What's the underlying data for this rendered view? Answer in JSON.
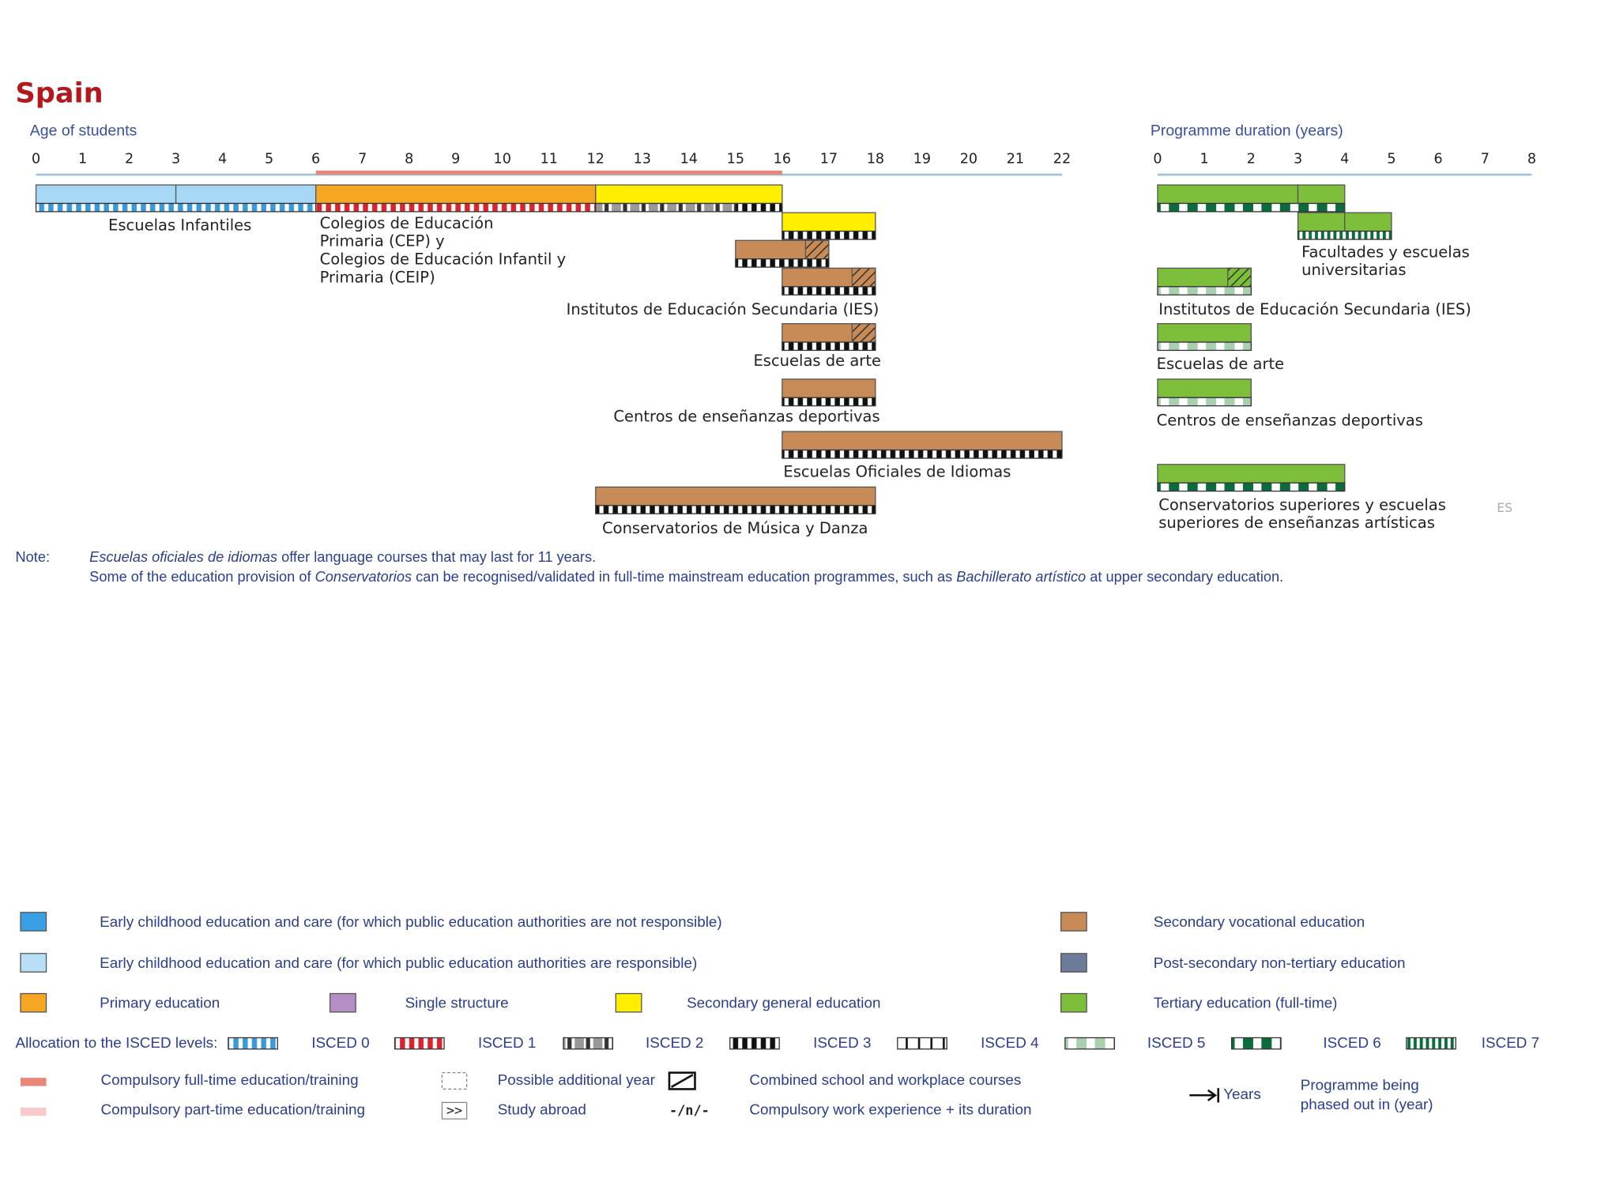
{
  "title": "Spain",
  "age_axis": {
    "label": "Age of students",
    "ticks": [
      0,
      1,
      2,
      3,
      4,
      5,
      6,
      7,
      8,
      9,
      10,
      11,
      12,
      13,
      14,
      15,
      16,
      17,
      18,
      19,
      20,
      21,
      22
    ],
    "compulsory_full_time": [
      6,
      16
    ]
  },
  "duration_axis": {
    "label": "Programme duration (years)",
    "ticks": [
      0,
      1,
      2,
      3,
      4,
      5,
      6,
      7,
      8
    ]
  },
  "age_programmes": [
    {
      "label_lines": [
        "Escuelas Infantiles"
      ],
      "segments": [
        {
          "start": 0,
          "end": 3,
          "color": "#a6d8f5"
        },
        {
          "start": 3,
          "end": 6,
          "color": "#a6d8f5"
        }
      ],
      "strips": [
        {
          "isced": 0,
          "start": 0,
          "end": 6
        }
      ]
    },
    {
      "label_lines": [
        "Colegios de Educación",
        "Primaria (CEP) y",
        "Colegios de Educación Infantil y",
        "Primaria (CEIP)"
      ],
      "segments": [
        {
          "start": 6,
          "end": 12,
          "color": "#f5a623"
        }
      ],
      "strips": [
        {
          "isced": 1,
          "start": 6,
          "end": 12
        }
      ]
    },
    {
      "segments": [
        {
          "start": 12,
          "end": 16,
          "color": "#ffee00"
        }
      ],
      "strips": [
        {
          "isced": 2,
          "start": 12,
          "end": 15
        },
        {
          "isced": 3,
          "start": 15,
          "end": 16
        }
      ]
    },
    {
      "segments": [
        {
          "start": 16,
          "end": 18,
          "color": "#ffee00"
        }
      ],
      "strips": [
        {
          "isced": 3,
          "start": 16,
          "end": 18
        }
      ]
    },
    {
      "segments": [
        {
          "start": 15,
          "end": 17,
          "color": "#c88a56"
        }
      ],
      "hatch": [
        16.5,
        17
      ],
      "strips": [
        {
          "isced": 3,
          "start": 15,
          "end": 17
        }
      ]
    },
    {
      "label_lines": [
        "Institutos de Educación Secundaria (IES)"
      ],
      "segments": [
        {
          "start": 16,
          "end": 18,
          "color": "#c88a56"
        }
      ],
      "hatch": [
        17.5,
        18
      ],
      "strips": [
        {
          "isced": 3,
          "start": 16,
          "end": 18
        }
      ]
    },
    {
      "label_lines": [
        "Escuelas de arte"
      ],
      "segments": [
        {
          "start": 16,
          "end": 18,
          "color": "#c88a56"
        }
      ],
      "hatch": [
        17.5,
        18
      ],
      "strips": [
        {
          "isced": 3,
          "start": 16,
          "end": 18
        }
      ]
    },
    {
      "label_lines": [
        "Centros de enseñanzas deportivas"
      ],
      "segments": [
        {
          "start": 16,
          "end": 18,
          "color": "#c88a56"
        }
      ],
      "strips": [
        {
          "isced": 3,
          "start": 16,
          "end": 18
        }
      ]
    },
    {
      "label_lines": [
        "Escuelas Oficiales de Idiomas"
      ],
      "segments": [
        {
          "start": 16,
          "end": 22,
          "color": "#c88a56"
        }
      ],
      "strips": [
        {
          "isced": 3,
          "start": 16,
          "end": 22
        }
      ]
    },
    {
      "label_lines": [
        "Conservatorios de Música y Danza"
      ],
      "segments": [
        {
          "start": 12,
          "end": 18,
          "color": "#c88a56"
        }
      ],
      "strips": [
        {
          "isced": 3,
          "start": 12,
          "end": 18
        }
      ]
    }
  ],
  "duration_programmes": [
    {
      "segments": [
        {
          "start": 0,
          "end": 3,
          "color": "#7dbf3a"
        },
        {
          "start": 3,
          "end": 4,
          "color": "#7dbf3a"
        }
      ],
      "strips": [
        {
          "isced": 6,
          "start": 0,
          "end": 4
        }
      ]
    },
    {
      "label_lines": [
        "Facultades y escuelas",
        "universitarias"
      ],
      "segments": [
        {
          "start": 3,
          "end": 4,
          "color": "#7dbf3a"
        },
        {
          "start": 4,
          "end": 5,
          "color": "#7dbf3a"
        }
      ],
      "strips": [
        {
          "isced": 7,
          "start": 3,
          "end": 5
        }
      ]
    },
    {
      "label_lines": [
        "Institutos de Educación Secundaria (IES)"
      ],
      "segments": [
        {
          "start": 0,
          "end": 2,
          "color": "#7dbf3a"
        }
      ],
      "hatch": [
        1.5,
        2
      ],
      "strips": [
        {
          "isced": 5,
          "start": 0,
          "end": 2
        }
      ]
    },
    {
      "label_lines": [
        "Escuelas de arte"
      ],
      "segments": [
        {
          "start": 0,
          "end": 2,
          "color": "#7dbf3a"
        }
      ],
      "strips": [
        {
          "isced": 5,
          "start": 0,
          "end": 2
        }
      ]
    },
    {
      "label_lines": [
        "Centros de enseñanzas deportivas"
      ],
      "segments": [
        {
          "start": 0,
          "end": 2,
          "color": "#7dbf3a"
        }
      ],
      "strips": [
        {
          "isced": 5,
          "start": 0,
          "end": 2
        }
      ]
    },
    {
      "label_lines": [
        "Conservatorios superiores y escuelas",
        "superiores de enseñanzas artísticas"
      ],
      "segments": [
        {
          "start": 0,
          "end": 4,
          "color": "#7dbf3a"
        }
      ],
      "strips": [
        {
          "isced": 6,
          "start": 0,
          "end": 4
        }
      ]
    }
  ],
  "country_code": "ES",
  "note": {
    "label": "Note:",
    "lines": [
      [
        {
          "text": "Escuelas oficiales de idiomas",
          "italic": true
        },
        {
          "text": " offer language courses that may last for 11 years."
        }
      ],
      [
        {
          "text": "Some of the education provision of "
        },
        {
          "text": "Conservatorios",
          "italic": true
        },
        {
          "text": " can be recognised/validated in full-time mainstream education programmes, such as "
        },
        {
          "text": "Bachillerato artístico",
          "italic": true
        },
        {
          "text": " at upper secondary education."
        }
      ]
    ]
  },
  "legend": {
    "colors": [
      {
        "label": "Early childhood education and care (for which public education authorities are not responsible)",
        "color": "#3aa0e6"
      },
      {
        "label": "Early childhood education and care (for which public education authorities are responsible)",
        "color": "#b9dff7"
      },
      {
        "label": "Primary education",
        "color": "#f5a623"
      },
      {
        "label": "Single structure",
        "color": "#b58ec4"
      },
      {
        "label": "Secondary general education",
        "color": "#ffee00"
      },
      {
        "label": "Secondary vocational education",
        "color": "#c88a56"
      },
      {
        "label": "Post-secondary non-tertiary education",
        "color": "#6d7b9a"
      },
      {
        "label": "Tertiary education (full-time)",
        "color": "#7dbf3a"
      }
    ],
    "isced_title": "Allocation to the ISCED levels:",
    "isced": [
      "ISCED 0",
      "ISCED 1",
      "ISCED 2",
      "ISCED 3",
      "ISCED 4",
      "ISCED 5",
      "ISCED 6",
      "ISCED 7"
    ],
    "symbols": [
      {
        "label": "Compulsory full-time education/training",
        "color": "#e8877a"
      },
      {
        "label": "Compulsory part-time education/training",
        "color": "#f6c9cb"
      },
      {
        "label": "Possible additional year"
      },
      {
        "symbol": ">>",
        "label": "Study abroad"
      },
      {
        "label": "Combined school and workplace courses"
      },
      {
        "symbol": "-/n/-",
        "label": "Compulsory work experience + its duration"
      },
      {
        "label": "Years"
      },
      {
        "label_lines": [
          "Programme being",
          "phased out in (year)"
        ]
      }
    ]
  }
}
